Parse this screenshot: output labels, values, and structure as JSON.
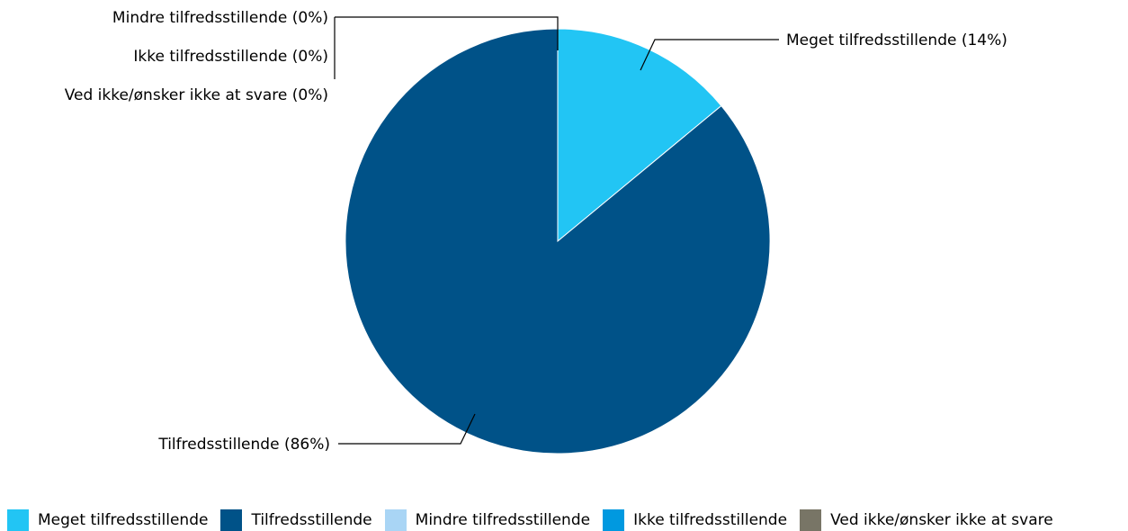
{
  "chart_data": {
    "type": "pie",
    "slices": [
      {
        "name": "Meget tilfredsstillende",
        "value": 14,
        "color": "#22c5f4",
        "label": "Meget tilfredsstillende (14%)"
      },
      {
        "name": "Tilfredsstillende",
        "value": 86,
        "color": "#005288",
        "label": "Tilfredsstillende (86%)"
      },
      {
        "name": "Mindre tilfredsstillende",
        "value": 0,
        "color": "#a9d5f5",
        "label": "Mindre tilfredsstillende (0%)"
      },
      {
        "name": "Ikke tilfredsstillende",
        "value": 0,
        "color": "#0099e0",
        "label": "Ikke tilfredsstillende (0%)"
      },
      {
        "name": "Ved ikke/ønsker ikke at svare",
        "value": 0,
        "color": "#787566",
        "label": "Ved ikke/ønsker ikke at svare (0%)"
      }
    ],
    "legend_position": "bottom"
  }
}
